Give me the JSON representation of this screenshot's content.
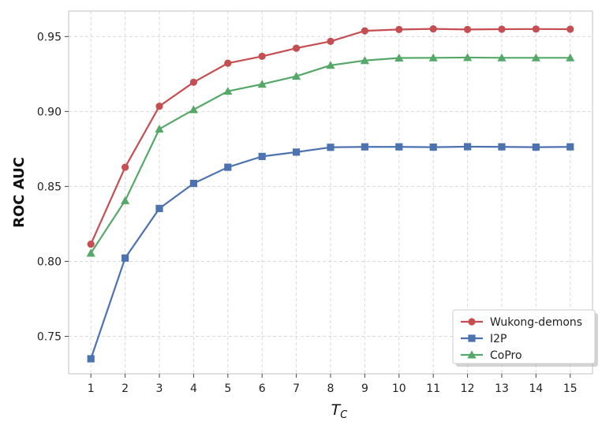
{
  "chart_data": {
    "type": "line",
    "xlabel_main": "T",
    "xlabel_sub": "C",
    "ylabel": "ROC AUC",
    "x": [
      1,
      2,
      3,
      4,
      5,
      6,
      7,
      8,
      9,
      10,
      11,
      12,
      13,
      14,
      15
    ],
    "xlim": [
      0.35,
      15.65
    ],
    "ylim": [
      0.725,
      0.967
    ],
    "yticks": [
      0.75,
      0.8,
      0.85,
      0.9,
      0.95
    ],
    "ytick_labels": [
      "0.75",
      "0.80",
      "0.85",
      "0.90",
      "0.95"
    ],
    "xtick_labels": [
      "1",
      "2",
      "3",
      "4",
      "5",
      "6",
      "7",
      "8",
      "9",
      "10",
      "11",
      "12",
      "13",
      "14",
      "15"
    ],
    "grid": true,
    "legend_position": "lower-right",
    "series": [
      {
        "name": "Wukong-demons",
        "color": "#c44e52",
        "marker": "circle",
        "values": [
          0.8115,
          0.8628,
          0.9035,
          0.9195,
          0.9322,
          0.9368,
          0.9422,
          0.9468,
          0.9538,
          0.9547,
          0.9551,
          0.9547,
          0.9549,
          0.955,
          0.9549
        ]
      },
      {
        "name": "I2P",
        "color": "#4c72b0",
        "marker": "square",
        "values": [
          0.735,
          0.8022,
          0.8353,
          0.852,
          0.8628,
          0.87,
          0.8729,
          0.8761,
          0.8764,
          0.8764,
          0.8762,
          0.8765,
          0.8764,
          0.8762,
          0.8764
        ]
      },
      {
        "name": "CoPro",
        "color": "#55a868",
        "marker": "triangle",
        "values": [
          0.8055,
          0.8405,
          0.8883,
          0.9012,
          0.9135,
          0.9182,
          0.9235,
          0.9308,
          0.934,
          0.9357,
          0.9358,
          0.936,
          0.9358,
          0.9358,
          0.9358
        ]
      }
    ]
  }
}
